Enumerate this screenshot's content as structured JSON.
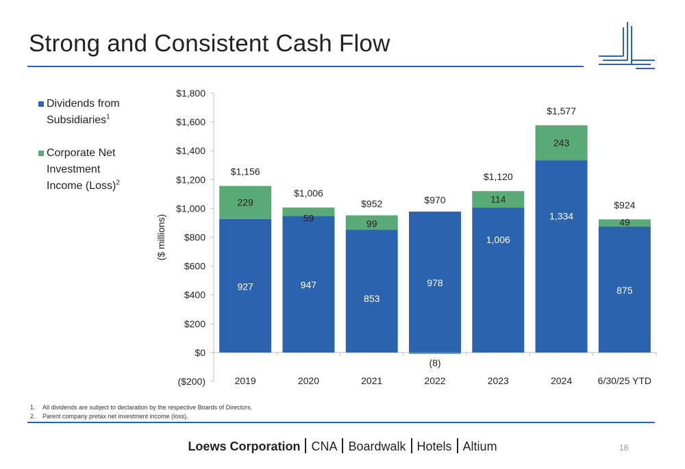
{
  "slide": {
    "title": "Strong and Consistent Cash Flow",
    "page_number": "18"
  },
  "legend": {
    "items": [
      {
        "label": "Dividends from Subsidiaries",
        "superscript": "1",
        "color": "#2b63ae"
      },
      {
        "label": "Corporate Net Investment Income (Loss)",
        "superscript": "2",
        "color": "#5aaa77"
      }
    ]
  },
  "chart_data": {
    "type": "bar",
    "stacked": true,
    "ylabel": "($ millions)",
    "ylim": [
      -200,
      1800
    ],
    "y_ticks": [
      -200,
      0,
      200,
      400,
      600,
      800,
      1000,
      1200,
      1400,
      1600,
      1800
    ],
    "y_tick_labels": [
      "($200)",
      "$0",
      "$200",
      "$400",
      "$600",
      "$800",
      "$1,000",
      "$1,200",
      "$1,400",
      "$1,600",
      "$1,800"
    ],
    "categories": [
      "2019",
      "2020",
      "2021",
      "2022",
      "2023",
      "2024",
      "6/30/25 YTD"
    ],
    "series": [
      {
        "name": "Dividends from Subsidiaries",
        "color": "#2b63ae",
        "values": [
          927,
          947,
          853,
          978,
          1006,
          1334,
          875
        ],
        "labels": [
          "927",
          "947",
          "853",
          "978",
          "1,006",
          "1,334",
          "875"
        ]
      },
      {
        "name": "Corporate Net Investment Income (Loss)",
        "color": "#5aaa77",
        "values": [
          229,
          59,
          99,
          -8,
          114,
          243,
          49
        ],
        "labels": [
          "229",
          "59",
          "99",
          "(8)",
          "114",
          "243",
          "49"
        ]
      }
    ],
    "totals": [
      1156,
      1006,
      952,
      970,
      1120,
      1577,
      924
    ],
    "total_labels": [
      "$1,156",
      "$1,006",
      "$952",
      "$970",
      "$1,120",
      "$1,577",
      "$924"
    ],
    "grid": false,
    "legend_position": "left"
  },
  "footnotes": [
    {
      "num": "1.",
      "text": "All dividends are subject to declaration by the respective Boards of Directors."
    },
    {
      "num": "2.",
      "text": "Parent company pretax net investment income (loss)."
    }
  ],
  "footer": {
    "company": "Loews Corporation",
    "brands": [
      "CNA",
      "Boardwalk",
      "Hotels",
      "Altium"
    ]
  }
}
